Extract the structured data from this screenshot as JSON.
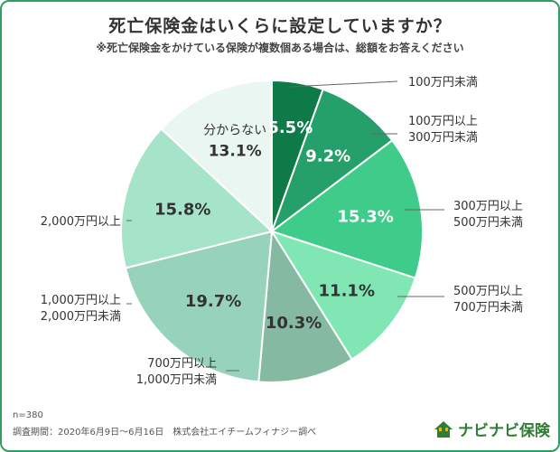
{
  "header": {
    "title": "死亡保険金はいくらに設定していますか？",
    "subtitle": "※死亡保険金をかけている保険が複数個ある場合は、総額をお答えください"
  },
  "chart_data": {
    "type": "pie",
    "categories": [
      "100万円未満",
      "100万円以上\n300万円未満",
      "300万円以上\n500万円未満",
      "500万円以上\n700万円未満",
      "700万円以上\n1,000万円未満",
      "1,000万円以上\n2,000万円未満",
      "2,000万円以上",
      "分からない"
    ],
    "values": [
      5.5,
      9.2,
      15.3,
      11.1,
      10.3,
      19.7,
      15.8,
      13.1
    ],
    "value_labels": [
      "5.5%",
      "9.2%",
      "15.3%",
      "11.1%",
      "10.3%",
      "19.7%",
      "15.8%",
      "13.1%"
    ],
    "colors": [
      "#0d7a48",
      "#26a06a",
      "#3fcb8a",
      "#7fe6b4",
      "#86b9a2",
      "#97d3ba",
      "#a6e4c9",
      "#eaf6f2"
    ],
    "legend": "outside labels with leader lines"
  },
  "footer": {
    "sample": "n=380",
    "survey": "調査期間：2020年6月9日～6月16日　株式会社エイチームフィナジー調べ",
    "brand": "ナビナビ保険",
    "brand_icon": "house-icon"
  }
}
